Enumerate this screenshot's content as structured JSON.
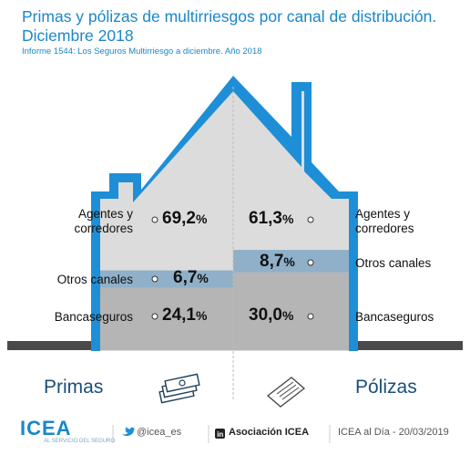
{
  "title": "Primas y pólizas de multirriesgos por canal de distribución. Diciembre 2018",
  "subtitle": "Informe 1544: Los Seguros Multirriesgo a diciembre. Año 2018",
  "chart_data": {
    "type": "stacked-bar",
    "categories": [
      "Primas",
      "Pólizas"
    ],
    "series": [
      {
        "name": "Bancaseguros",
        "values": [
          24.1,
          30.0
        ]
      },
      {
        "name": "Otros canales",
        "values": [
          6.7,
          8.7
        ]
      },
      {
        "name": "Agentes y corredores",
        "values": [
          69.2,
          61.3
        ]
      }
    ],
    "labels": {
      "left": {
        "agentes": "Agentes y corredores",
        "otros": "Otros canales",
        "banca": "Bancaseguros"
      },
      "right": {
        "agentes": "Agentes y corredores",
        "otros": "Otros canales",
        "banca": "Bancaseguros"
      }
    },
    "value_text": {
      "primas": {
        "agentes": "69,2",
        "otros": "6,7",
        "banca": "24,1"
      },
      "polizas": {
        "agentes": "61,3",
        "otros": "8,7",
        "banca": "30,0"
      }
    },
    "unit": "%",
    "colors": {
      "agentes": "#d9d9d9",
      "otros": "#8fb0c8",
      "banca": "#b5b5b5",
      "house": "#1e8fd6"
    }
  },
  "footer": {
    "logo": "ICEA",
    "logo_sub": "AL SERVICIO DEL SEGURO",
    "twitter": "@icea_es",
    "linkedin": "Asociación ICEA",
    "date": "ICEA al Día - 20/03/2019"
  },
  "icons": [
    "money-icon",
    "document-icon",
    "twitter-icon",
    "linkedin-icon"
  ]
}
